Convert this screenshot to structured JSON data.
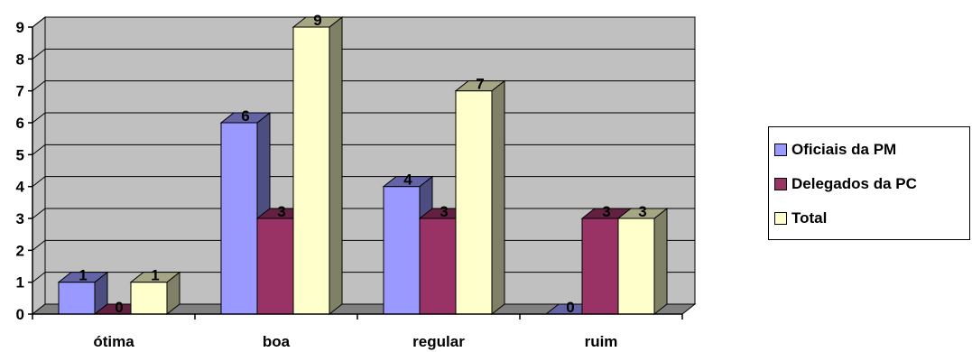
{
  "chart_data": {
    "type": "bar",
    "categories": [
      "ótima",
      "boa",
      "regular",
      "ruim"
    ],
    "series": [
      {
        "name": "Oficiais da PM",
        "values": [
          1,
          6,
          4,
          0
        ],
        "color": "#9999ff"
      },
      {
        "name": "Delegados da PC",
        "values": [
          0,
          3,
          3,
          3
        ],
        "color": "#993366"
      },
      {
        "name": "Total",
        "values": [
          1,
          9,
          7,
          3
        ],
        "color": "#ffffcc"
      }
    ],
    "ylim": [
      0,
      9
    ],
    "yticks": [
      "0",
      "1",
      "2",
      "3",
      "4",
      "5",
      "6",
      "7",
      "8",
      "9"
    ],
    "grid": true,
    "legend_position": "right",
    "style": "3d-clustered-column",
    "wall_color": "#c0c0c0"
  }
}
